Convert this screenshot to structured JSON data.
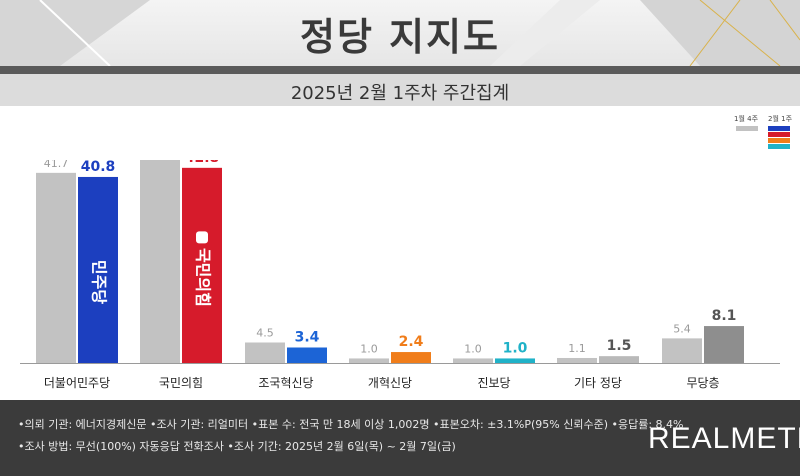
{
  "title": "정당 지지도",
  "subtitle": "2025년 2월 1주차 주간집계",
  "legend": {
    "prev_label": "1월 4주",
    "curr_label": "2월 1주",
    "prev_color": "#c2c2c2",
    "curr_colors": [
      "#1c3fbf",
      "#d61b2b",
      "#f07d1a",
      "#20b2c8"
    ]
  },
  "notes": [
    "•의뢰 기관: 에너지경제신문  •조사 기관: 리얼미터  •표본 수: 전국 만 18세 이상 1,002명  •표본오차: ±3.1%P(95% 신뢰수준)  •응답률: 8.4%",
    "•조사 방법: 무선(100%) 자동응답 전화조사  •조사 기간: 2025년 2월 6일(목) ~ 2월 7일(금)"
  ],
  "brand": "REALMETER",
  "chart_data": {
    "type": "bar",
    "title": "정당 지지도",
    "subtitle": "2025년 2월 1주차 주간집계",
    "categories": [
      "더불어민주당",
      "국민의힘",
      "조국혁신당",
      "개혁신당",
      "진보당",
      "기타 정당",
      "무당층"
    ],
    "series": [
      {
        "name": "1월 4주",
        "values": [
          41.7,
          45.4,
          4.5,
          1.0,
          1.0,
          1.1,
          5.4
        ],
        "color": "#c2c2c2"
      },
      {
        "name": "2월 1주",
        "values": [
          40.8,
          42.8,
          3.4,
          2.4,
          1.0,
          1.5,
          8.1
        ],
        "colors": [
          "#1c3fbf",
          "#d61b2b",
          "#1c64d6",
          "#f07d1a",
          "#20b2c8",
          "#b9b9b9",
          "#8e8e8e"
        ]
      }
    ],
    "bar_logos": [
      "민주당",
      "국민의힘"
    ],
    "ylim": [
      0,
      50
    ],
    "grid": false,
    "legend_position": "top-right"
  }
}
